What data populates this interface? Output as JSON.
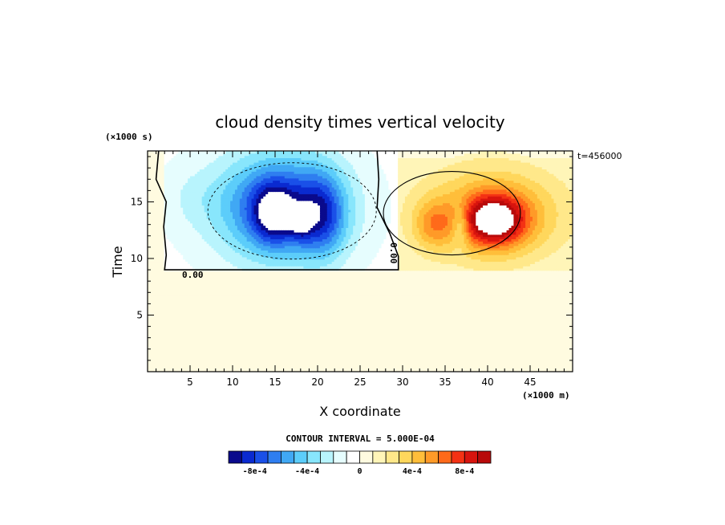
{
  "chart_data": {
    "type": "heatmap",
    "title": "cloud density times vertical velocity",
    "xlabel": "X coordinate",
    "ylabel": "Time",
    "x_unit": "(×1000 m)",
    "y_unit": "(×1000 s)",
    "time_stamp": "t=456000",
    "contour_interval_text": "CONTOUR INTERVAL = 5.000E-04",
    "contour_label": "0.00",
    "xlim": [
      0,
      50
    ],
    "ylim": [
      0,
      19.5
    ],
    "x_ticks": [
      5,
      10,
      15,
      20,
      25,
      30,
      35,
      40,
      45
    ],
    "y_ticks": [
      5,
      10,
      15
    ],
    "x_tick_labels": [
      "5",
      "10",
      "15",
      "20",
      "25",
      "30",
      "35",
      "40",
      "45"
    ],
    "y_tick_labels": [
      "5",
      "10",
      "15"
    ],
    "field": {
      "background_value": 4e-05,
      "onset_time": 9.0,
      "regions": [
        {
          "name": "updraft-negative",
          "x_center": 16.5,
          "t_center": 14.2,
          "x_extent": 29.0,
          "t_extent_min": 9.0,
          "peak": -0.0011
        },
        {
          "name": "positive-core",
          "x_center": 40.5,
          "t_center": 13.2,
          "peak": 0.00115
        }
      ]
    },
    "colorbar": {
      "levels": [
        -0.001,
        -0.0009,
        -0.0008,
        -0.0007,
        -0.0006,
        -0.0005,
        -0.0004,
        -0.0003,
        -0.0002,
        -0.0001,
        0,
        0.0001,
        0.0002,
        0.0003,
        0.0004,
        0.0005,
        0.0006,
        0.0007,
        0.0008,
        0.0009,
        0.001
      ],
      "colors": [
        "#0a0a8c",
        "#0a2ad0",
        "#1a50e8",
        "#2f7ef0",
        "#40a8f4",
        "#5ccdfa",
        "#88e6fc",
        "#b8f4fd",
        "#e6fdfe",
        "#ffffff",
        "#fffbe0",
        "#fff5b8",
        "#ffe88a",
        "#ffd75c",
        "#ffbe3a",
        "#ff9a28",
        "#ff6a1a",
        "#f43214",
        "#d8140e",
        "#b80a0a"
      ],
      "tick_labels": [
        "-8e-4",
        "-4e-4",
        "0",
        "4e-4",
        "8e-4"
      ],
      "tick_values": [
        -0.0008,
        -0.0004,
        0,
        0.0004,
        0.0008
      ]
    }
  }
}
